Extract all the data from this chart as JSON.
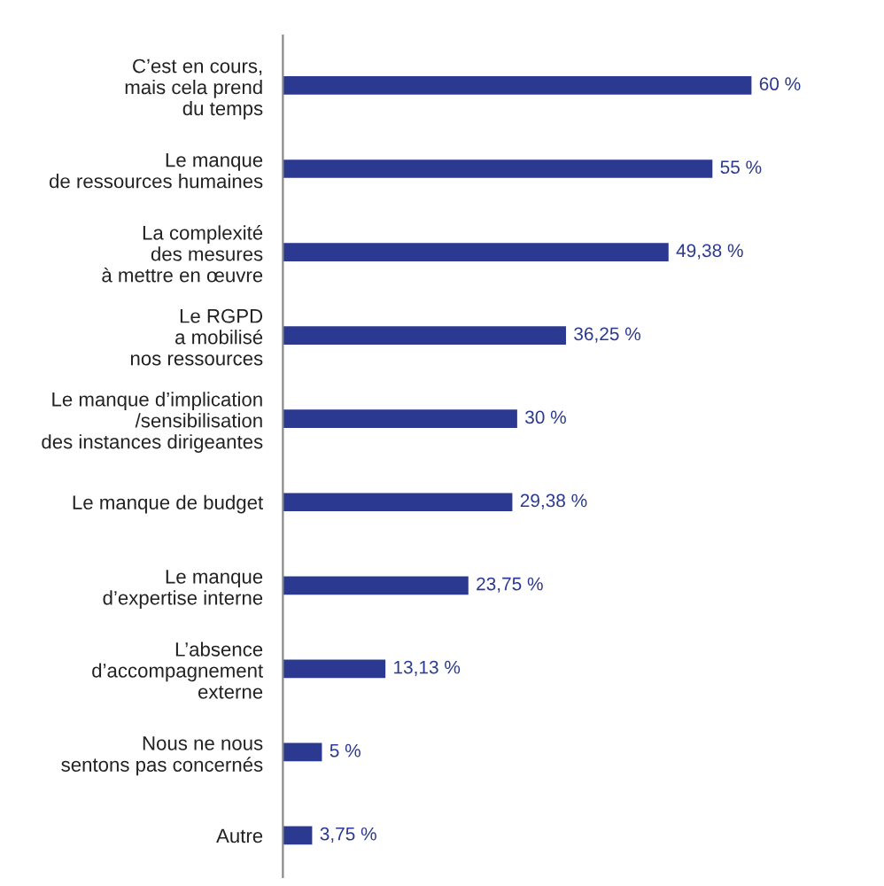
{
  "chart_data": {
    "type": "bar",
    "orientation": "horizontal",
    "categories": [
      "C’est en cours,\nmais cela prend\ndu temps",
      "Le manque\nde ressources humaines",
      "La complexité\ndes mesures\nà mettre en œuvre",
      "Le RGPD\na mobilisé\nnos ressources",
      "Le manque d’implication\n/sensibilisation\ndes instances dirigeantes",
      "Le manque de budget",
      "Le manque\nd’expertise interne",
      "L’absence\nd’accompagnement\nexterne",
      "Nous ne nous\nsentons pas concernés",
      "Autre"
    ],
    "values": [
      60,
      55,
      49.38,
      36.25,
      30,
      29.38,
      23.75,
      13.13,
      5,
      3.75
    ],
    "value_labels": [
      "60 %",
      "55 %",
      "49,38 %",
      "36,25 %",
      "30 %",
      "29,38 %",
      "23,75 %",
      "13,13 %",
      "5 %",
      "3,75 %"
    ],
    "color": "#2b3990",
    "grid": false,
    "legend": false
  }
}
